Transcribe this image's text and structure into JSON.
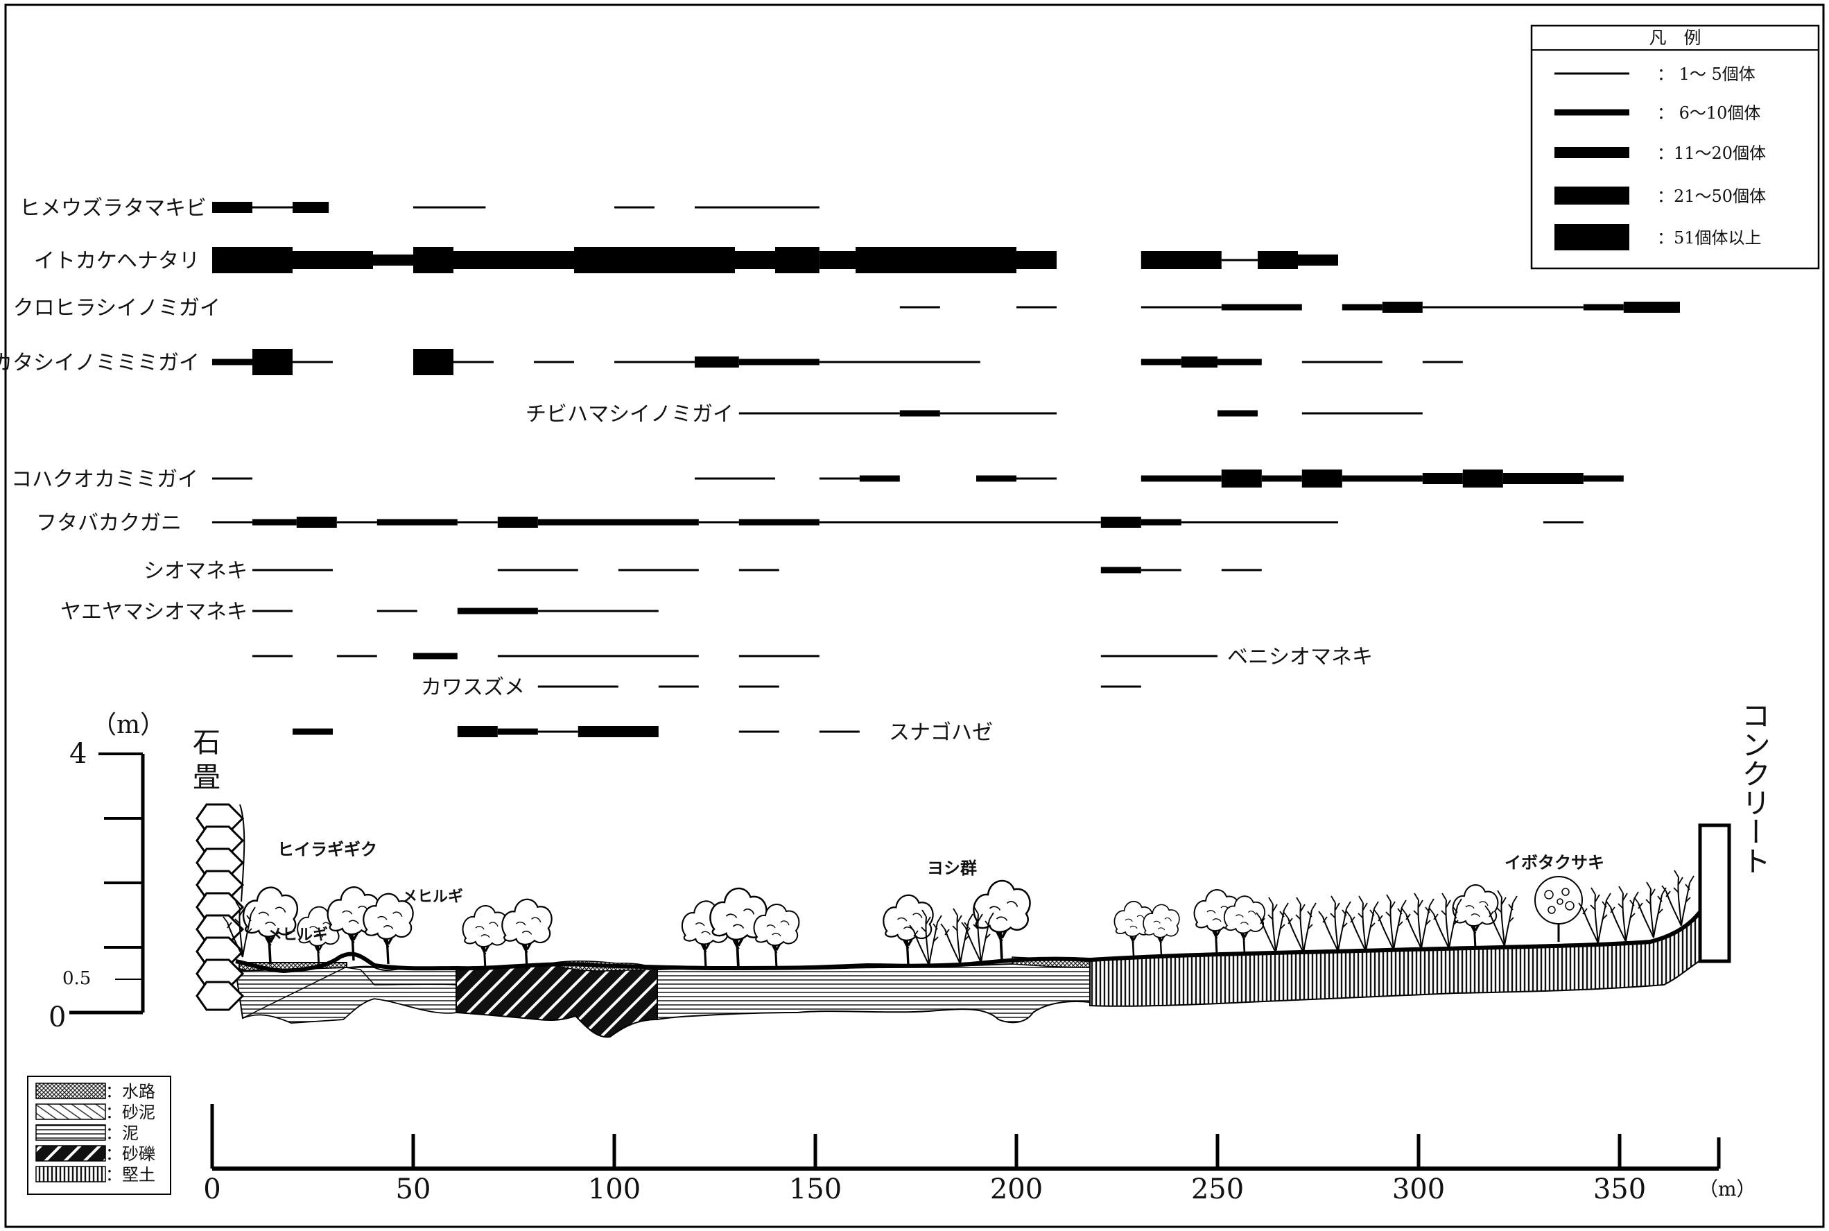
{
  "legend": {
    "title": "凡　例",
    "entries": [
      {
        "label": "：  1～  5個体"
      },
      {
        "label": "：  6～10個体"
      },
      {
        "label": "：11～20個体"
      },
      {
        "label": "：21～50個体"
      },
      {
        "label": "：51個体以上"
      }
    ]
  },
  "species": [
    {
      "name": "ヒメウズラタマキビ",
      "segments": [
        [
          0,
          10,
          3
        ],
        [
          10,
          20,
          1
        ],
        [
          20,
          29,
          3
        ],
        [
          50,
          68,
          1
        ],
        [
          100,
          110,
          1
        ],
        [
          120,
          151,
          1
        ]
      ]
    },
    {
      "name": "イトカケヘナタリ",
      "segments": [
        [
          0,
          20,
          5
        ],
        [
          20,
          40,
          4
        ],
        [
          40,
          50,
          3
        ],
        [
          50,
          60,
          5
        ],
        [
          60,
          90,
          4
        ],
        [
          90,
          130,
          5
        ],
        [
          130,
          140,
          4
        ],
        [
          140,
          151,
          5
        ],
        [
          151,
          160,
          4
        ],
        [
          160,
          200,
          5
        ],
        [
          200,
          210,
          4
        ],
        [
          231,
          251,
          4
        ],
        [
          251,
          260,
          1
        ],
        [
          260,
          270,
          4
        ],
        [
          270,
          280,
          3
        ]
      ]
    },
    {
      "name": "クロヒラシイノミガイ",
      "segments": [
        [
          171,
          181,
          1
        ],
        [
          200,
          210,
          1
        ],
        [
          231,
          251,
          1
        ],
        [
          251,
          271,
          2
        ],
        [
          281,
          291,
          2
        ],
        [
          291,
          301,
          3
        ],
        [
          301,
          341,
          1
        ],
        [
          341,
          351,
          2
        ],
        [
          351,
          365,
          3
        ]
      ]
    },
    {
      "name": "カタシイノミミミガイ",
      "segments": [
        [
          0,
          10,
          2
        ],
        [
          10,
          20,
          5
        ],
        [
          20,
          30,
          1
        ],
        [
          50,
          60,
          5
        ],
        [
          60,
          70,
          1
        ],
        [
          80,
          90,
          1
        ],
        [
          100,
          120,
          1
        ],
        [
          120,
          131,
          3
        ],
        [
          131,
          151,
          2
        ],
        [
          151,
          191,
          1
        ],
        [
          231,
          241,
          2
        ],
        [
          241,
          250,
          3
        ],
        [
          250,
          261,
          2
        ],
        [
          271,
          291,
          1
        ],
        [
          301,
          311,
          1
        ]
      ]
    },
    {
      "name": "チビハマシイノミガイ",
      "segments": [
        [
          131,
          171,
          1
        ],
        [
          171,
          181,
          2
        ],
        [
          181,
          210,
          1
        ],
        [
          250,
          260,
          2
        ],
        [
          271,
          301,
          1
        ]
      ]
    },
    {
      "name": "コハクオカミミガイ",
      "segments": [
        [
          0,
          10,
          1
        ],
        [
          120,
          140,
          1
        ],
        [
          151,
          161,
          1
        ],
        [
          161,
          171,
          2
        ],
        [
          190,
          200,
          2
        ],
        [
          200,
          210,
          1
        ],
        [
          231,
          251,
          2
        ],
        [
          251,
          261,
          4
        ],
        [
          261,
          271,
          2
        ],
        [
          271,
          281,
          4
        ],
        [
          281,
          301,
          2
        ],
        [
          301,
          311,
          3
        ],
        [
          311,
          321,
          4
        ],
        [
          321,
          341,
          3
        ],
        [
          341,
          351,
          2
        ]
      ]
    },
    {
      "name": "フタバカクガニ",
      "segments": [
        [
          0,
          10,
          1
        ],
        [
          10,
          21,
          2
        ],
        [
          21,
          31,
          3
        ],
        [
          31,
          41,
          1
        ],
        [
          41,
          61,
          2
        ],
        [
          61,
          71,
          1
        ],
        [
          71,
          81,
          3
        ],
        [
          81,
          121,
          2
        ],
        [
          121,
          131,
          1
        ],
        [
          131,
          151,
          2
        ],
        [
          151,
          221,
          1
        ],
        [
          221,
          231,
          3
        ],
        [
          231,
          241,
          2
        ],
        [
          241,
          280,
          1
        ],
        [
          331,
          341,
          1
        ]
      ]
    },
    {
      "name": "シオマネキ",
      "segments": [
        [
          10,
          30,
          1
        ],
        [
          71,
          91,
          1
        ],
        [
          101,
          121,
          1
        ],
        [
          131,
          141,
          1
        ],
        [
          221,
          231,
          2
        ],
        [
          231,
          241,
          1
        ],
        [
          251,
          261,
          1
        ]
      ]
    },
    {
      "name": "ヤエヤマシオマネキ",
      "segments": [
        [
          10,
          20,
          1
        ],
        [
          41,
          51,
          1
        ],
        [
          61,
          81,
          2
        ],
        [
          81,
          111,
          1
        ]
      ]
    },
    {
      "name": "ベニシオマネキ",
      "segments": [
        [
          10,
          20,
          1
        ],
        [
          31,
          41,
          1
        ],
        [
          50,
          61,
          2
        ],
        [
          71,
          121,
          1
        ],
        [
          131,
          151,
          1
        ],
        [
          221,
          250,
          1
        ]
      ]
    },
    {
      "name": "カワスズメ",
      "segments": [
        [
          81,
          101,
          1
        ],
        [
          111,
          121,
          1
        ],
        [
          131,
          141,
          1
        ],
        [
          221,
          231,
          1
        ]
      ]
    },
    {
      "name": "スナゴハゼ",
      "segments": [
        [
          20,
          30,
          2
        ],
        [
          61,
          71,
          3
        ],
        [
          71,
          81,
          2
        ],
        [
          81,
          91,
          1
        ],
        [
          91,
          111,
          3
        ],
        [
          131,
          141,
          1
        ],
        [
          151,
          161,
          1
        ]
      ]
    }
  ],
  "plants": {
    "hiiragigiku": "ヒイラギギク",
    "mehirugi_a": "メヒルギ",
    "mehirugi_b": "メヒルギ",
    "yoshi": "ヨシ群",
    "ibotakusagi": "イボタクサキ"
  },
  "profile": {
    "left_label": "石畳",
    "right_label": "コンクリート",
    "y_unit": "（m）",
    "y_ticks": [
      "4",
      "0.5",
      "0"
    ]
  },
  "substrate_legend": [
    {
      "name": "水路",
      "label": "：水路"
    },
    {
      "name": "砂泥",
      "label": "：砂泥"
    },
    {
      "name": "泥",
      "label": "：泥"
    },
    {
      "name": "砂礫",
      "label": "：砂礫"
    },
    {
      "name": "堅土",
      "label": "：堅土"
    }
  ],
  "x_axis": {
    "ticks": [
      "0",
      "50",
      "100",
      "150",
      "200",
      "250",
      "300",
      "350"
    ],
    "unit": "（m）"
  }
}
